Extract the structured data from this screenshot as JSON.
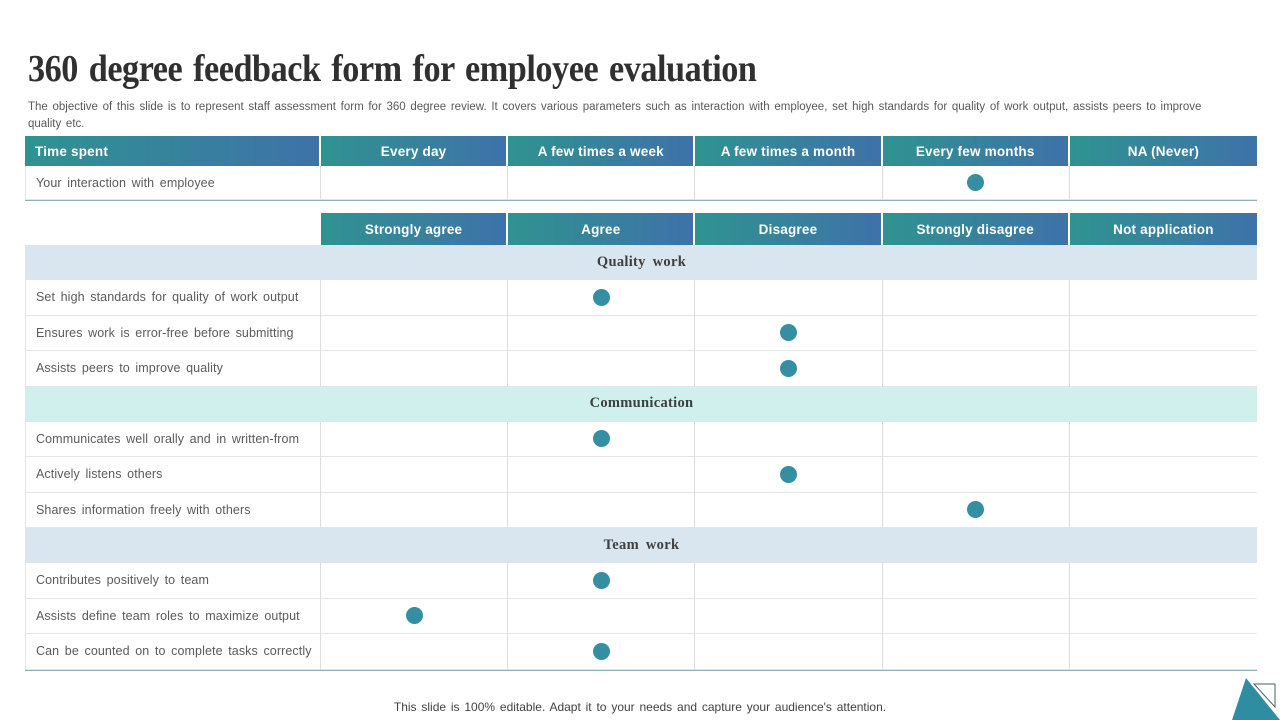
{
  "slide": {
    "title": "360 degree feedback form for employee evaluation",
    "description": "The objective of this slide is to represent staff assessment form for 360 degree review. It covers various parameters such as interaction with employee, set high standards for quality of work output, assists peers to improve quality etc.",
    "footer": "This slide is 100% editable. Adapt it to your needs and capture your audience's attention."
  },
  "colors": {
    "header_gradient_start": "#2f9390",
    "header_gradient_end": "#3e72a9",
    "dot": "#338fa1",
    "section_blue": "#d9e6f0",
    "section_mint": "#cff0ed",
    "corner_teal": "#2f8da1"
  },
  "time_table": {
    "header": [
      "Time spent",
      "Every day",
      "A few times a week",
      "A few times a month",
      "Every few months",
      "NA (Never)"
    ],
    "rows": [
      {
        "label": "Your interaction with employee",
        "selected": 3
      }
    ]
  },
  "rating_table": {
    "header": [
      "",
      "Strongly agree",
      "Agree",
      "Disagree",
      "Strongly disagree",
      "Not application"
    ],
    "sections": [
      {
        "name": "Quality work",
        "style": "blue",
        "rows": [
          {
            "label": "Set high standards for quality of work output",
            "selected": 1
          },
          {
            "label": "Ensures work is error-free before submitting",
            "selected": 2
          },
          {
            "label": "Assists peers to improve quality",
            "selected": 2
          }
        ]
      },
      {
        "name": "Communication",
        "style": "mint",
        "rows": [
          {
            "label": "Communicates well orally and in written-from",
            "selected": 1
          },
          {
            "label": "Actively listens others",
            "selected": 2
          },
          {
            "label": "Shares information freely with others",
            "selected": 3
          }
        ]
      },
      {
        "name": "Team work",
        "style": "blue",
        "rows": [
          {
            "label": "Contributes positively to team",
            "selected": 1
          },
          {
            "label": "Assists define team roles to maximize output",
            "selected": 0
          },
          {
            "label": "Can be counted on to complete tasks correctly",
            "selected": 1
          }
        ]
      }
    ]
  }
}
